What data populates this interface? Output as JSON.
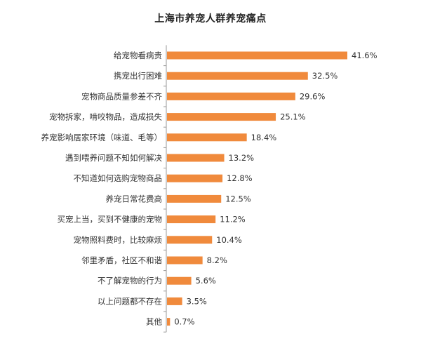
{
  "chart_data": {
    "type": "bar",
    "orientation": "horizontal",
    "title": "上海市养宠人群养宠痛点",
    "categories": [
      "给宠物看病贵",
      "携宠出行困难",
      "宠物商品质量参差不齐",
      "宠物拆家，啃咬物品，造成损失",
      "养宠影响居家环境（味道、毛等）",
      "遇到喂养问题不知如何解决",
      "不知道如何选购宠物商品",
      "养宠日常花费高",
      "买宠上当，买到不健康的宠物",
      "宠物照料费时，比较麻烦",
      "邻里矛盾，社区不和谐",
      "不了解宠物的行为",
      "以上问题都不存在",
      "其他"
    ],
    "values": [
      41.6,
      32.5,
      29.6,
      25.1,
      18.4,
      13.2,
      12.8,
      12.5,
      11.2,
      10.4,
      8.2,
      5.6,
      3.5,
      0.7
    ],
    "value_labels": [
      "41.6%",
      "32.5%",
      "29.6%",
      "25.1%",
      "18.4%",
      "13.2%",
      "12.8%",
      "12.5%",
      "11.2%",
      "10.4%",
      "8.2%",
      "5.6%",
      "3.5%",
      "0.7%"
    ],
    "xlim": [
      0,
      45
    ],
    "grid": false,
    "axis_line": true,
    "bar_color": "#F08A3C",
    "axis_color": "#999999"
  }
}
